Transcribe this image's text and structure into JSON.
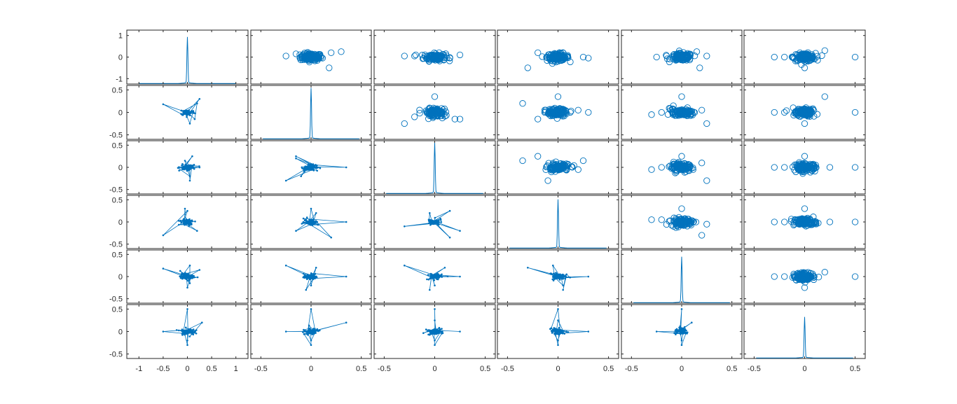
{
  "chart_data": {
    "type": "scatter",
    "layout": "scatter-matrix",
    "rows": 6,
    "cols": 6,
    "grid": false,
    "color": "#0072BD",
    "diagonal_type": "line",
    "upper_triangle_marker": "circle",
    "lower_triangle_marker": "dot-with-lines",
    "row_ylim": [
      [
        -1.25,
        1.25
      ],
      [
        -0.6,
        0.6
      ],
      [
        -0.6,
        0.6
      ],
      [
        -0.6,
        0.6
      ],
      [
        -0.6,
        0.6
      ],
      [
        -0.6,
        0.6
      ]
    ],
    "col_xlim": [
      [
        -1.25,
        1.25
      ],
      [
        -0.6,
        0.6
      ],
      [
        -0.6,
        0.6
      ],
      [
        -0.6,
        0.6
      ],
      [
        -0.6,
        0.6
      ],
      [
        -0.6,
        0.6
      ]
    ],
    "row_yticks": [
      [
        -1,
        0,
        1
      ],
      [
        -0.5,
        0,
        0.5
      ],
      [
        -0.5,
        0,
        0.5
      ],
      [
        -0.5,
        0,
        0.5
      ],
      [
        -0.5,
        0,
        0.5
      ],
      [
        -0.5,
        0,
        0.5
      ]
    ],
    "row_ytick_labels": [
      [
        "-1",
        "0",
        "1"
      ],
      [
        "-0.5",
        "0",
        "0.5"
      ],
      [
        "-0.5",
        "0",
        "0.5"
      ],
      [
        "-0.5",
        "0",
        "0.5"
      ],
      [
        "-0.5",
        "0",
        "0.5"
      ],
      [
        "-0.5",
        "0",
        "0.5"
      ]
    ],
    "col_xticks": [
      [
        -1,
        -0.5,
        0,
        0.5,
        1
      ],
      [
        -0.5,
        0,
        0.5
      ],
      [
        -0.5,
        0,
        0.5
      ],
      [
        -0.5,
        0,
        0.5
      ],
      [
        -0.5,
        0,
        0.5
      ],
      [
        -0.5,
        0,
        0.5
      ]
    ],
    "col_xtick_labels": [
      [
        "-1",
        "-0.5",
        "0",
        "0.5",
        "1"
      ],
      [
        "-0.5",
        "0",
        "0.5"
      ],
      [
        "-0.5",
        "0",
        "0.5"
      ],
      [
        "-0.5",
        "0",
        "0.5"
      ],
      [
        "-0.5",
        "0",
        "0.5"
      ],
      [
        "-0.5",
        "0",
        "0.5"
      ]
    ],
    "diagonal_peak_height": [
      0.85,
      0.93,
      0.95,
      0.9,
      0.85,
      0.75
    ],
    "outliers": {
      "0,1": [
        [
          -0.25,
          0.05
        ],
        [
          -0.15,
          0.15
        ],
        [
          0.2,
          0.2
        ],
        [
          0.3,
          0.25
        ],
        [
          0.18,
          -0.5
        ]
      ],
      "0,2": [
        [
          -0.3,
          0.05
        ],
        [
          -0.2,
          0.05
        ],
        [
          0.25,
          0.1
        ],
        [
          0.15,
          -0.05
        ]
      ],
      "0,3": [
        [
          -0.3,
          -0.5
        ],
        [
          0.25,
          0
        ],
        [
          0.3,
          -0.05
        ],
        [
          -0.2,
          0.2
        ]
      ],
      "0,4": [
        [
          -0.25,
          0
        ],
        [
          -0.15,
          0.05
        ],
        [
          0.15,
          0.25
        ],
        [
          0.18,
          -0.5
        ],
        [
          0.25,
          0.05
        ]
      ],
      "0,5": [
        [
          -0.3,
          0
        ],
        [
          -0.2,
          0
        ],
        [
          0.5,
          0
        ],
        [
          0.2,
          0.3
        ],
        [
          0,
          -0.5
        ]
      ],
      "1,2": [
        [
          -0.3,
          -0.25
        ],
        [
          -0.2,
          -0.1
        ],
        [
          0.2,
          -0.15
        ],
        [
          0.25,
          -0.15
        ],
        [
          0,
          0.35
        ]
      ],
      "1,3": [
        [
          -0.35,
          0.2
        ],
        [
          0.2,
          0.05
        ],
        [
          0.3,
          0
        ],
        [
          -0.2,
          -0.15
        ],
        [
          0,
          0.35
        ]
      ],
      "1,4": [
        [
          -0.3,
          -0.05
        ],
        [
          -0.2,
          0
        ],
        [
          0.25,
          -0.25
        ],
        [
          0.2,
          0.05
        ],
        [
          0,
          0.35
        ]
      ],
      "1,5": [
        [
          -0.3,
          0
        ],
        [
          -0.2,
          0
        ],
        [
          0.5,
          0
        ],
        [
          0.2,
          0.35
        ],
        [
          0,
          -0.25
        ]
      ],
      "2,3": [
        [
          -0.35,
          0.15
        ],
        [
          -0.2,
          0.25
        ],
        [
          0.25,
          0.15
        ],
        [
          0.2,
          -0.05
        ],
        [
          -0.1,
          -0.3
        ]
      ],
      "2,4": [
        [
          -0.3,
          -0.05
        ],
        [
          -0.2,
          0
        ],
        [
          0.25,
          -0.3
        ],
        [
          0.2,
          0.1
        ],
        [
          0,
          0.25
        ]
      ],
      "2,5": [
        [
          -0.3,
          0
        ],
        [
          -0.2,
          0
        ],
        [
          0.5,
          0
        ],
        [
          0.25,
          0
        ],
        [
          0,
          0.25
        ]
      ],
      "3,4": [
        [
          -0.3,
          0.05
        ],
        [
          -0.2,
          0.05
        ],
        [
          0.25,
          -0.05
        ],
        [
          0.2,
          -0.3
        ],
        [
          0,
          0.3
        ]
      ],
      "3,5": [
        [
          -0.3,
          0
        ],
        [
          -0.2,
          0
        ],
        [
          0.5,
          0
        ],
        [
          0.25,
          0
        ],
        [
          0,
          0.3
        ]
      ],
      "4,5": [
        [
          -0.3,
          0
        ],
        [
          -0.2,
          0
        ],
        [
          0.5,
          0
        ],
        [
          0.2,
          0.1
        ],
        [
          0,
          -0.25
        ]
      ]
    }
  }
}
